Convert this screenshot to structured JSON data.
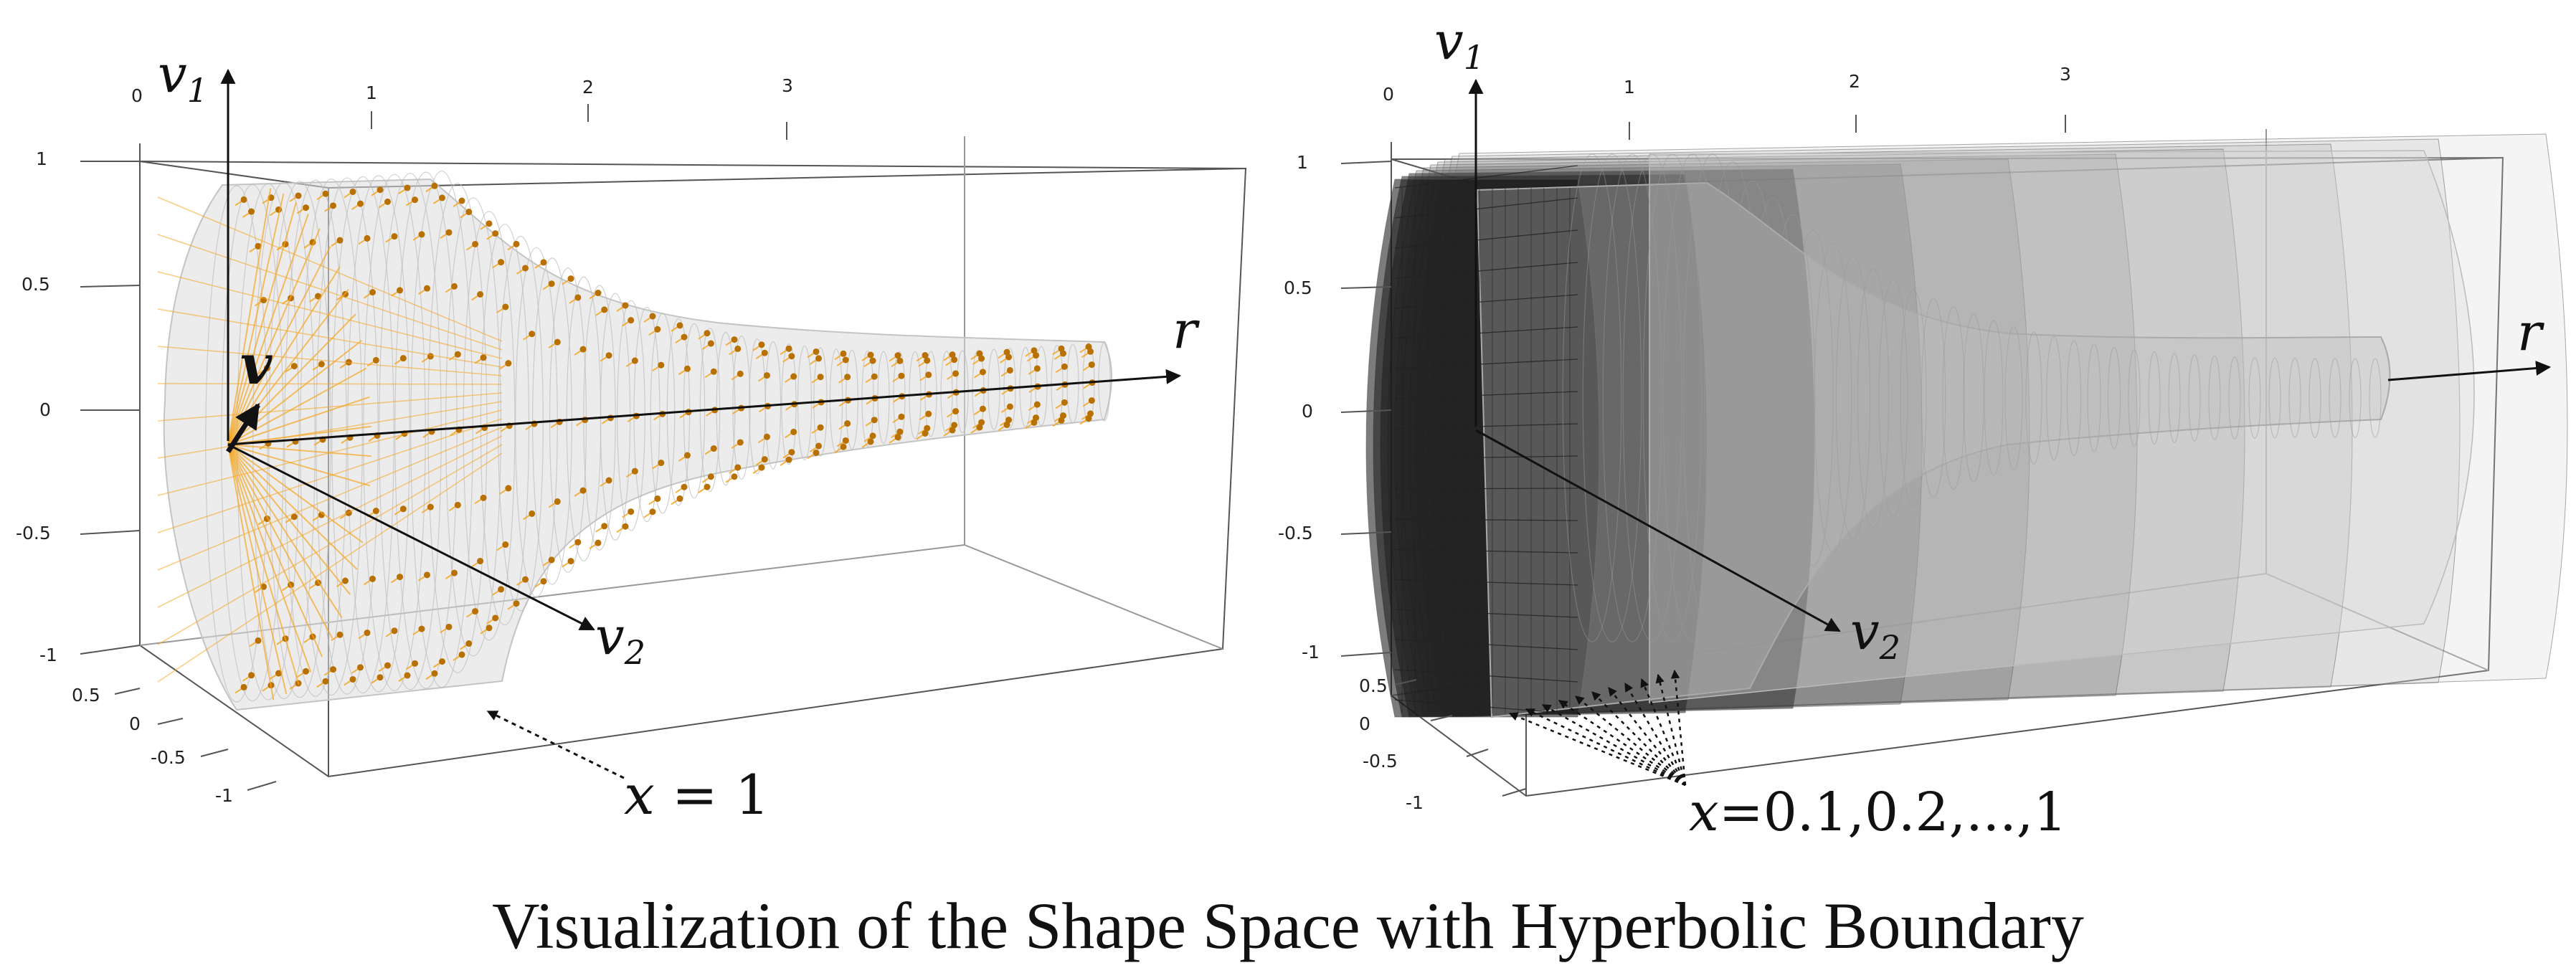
{
  "caption": "Visualization of the Shape Space with Hyperbolic Boundary",
  "colors": {
    "orange": "#f5a623",
    "dark_orange": "#b87000",
    "mesh_gray": "#c9c9c9",
    "ink": "#111111"
  },
  "left_panel": {
    "axis_labels": {
      "v1": "v",
      "v1_sub": "1",
      "v2": "v",
      "v2_sub": "2",
      "r": "r",
      "v": "v"
    },
    "top_ticks": [
      "0",
      "1",
      "2",
      "3"
    ],
    "left_ticks": [
      "1",
      "0.5",
      "0",
      "-0.5",
      "-1"
    ],
    "depth_ticks": [
      "0.5",
      "0",
      "-0.5",
      "-1"
    ],
    "annotation": {
      "var": "x",
      "rest": " = 1"
    }
  },
  "right_panel": {
    "axis_labels": {
      "v1": "v",
      "v1_sub": "1",
      "v2": "v",
      "v2_sub": "2",
      "r": "r"
    },
    "top_ticks": [
      "0",
      "1",
      "2",
      "3"
    ],
    "left_ticks": [
      "1",
      "0.5",
      "0",
      "-0.5",
      "-1"
    ],
    "depth_ticks": [
      "0.5",
      "0",
      "-0.5",
      "-1"
    ],
    "annotation": {
      "var": "x",
      "rest": "=0.1,0.2,...,1"
    }
  }
}
